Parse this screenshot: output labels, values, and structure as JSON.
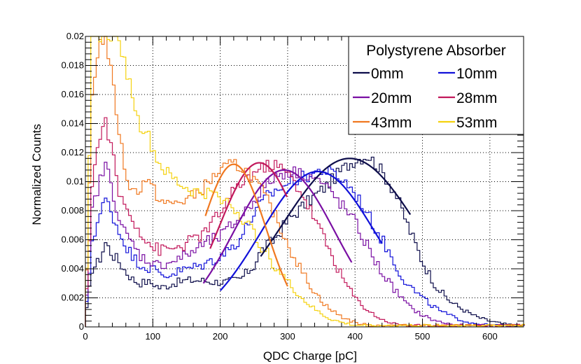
{
  "chart_data": {
    "type": "line",
    "xlabel": "QDC Charge [pC]",
    "ylabel": "Normalized Counts",
    "xlim": [
      0,
      650
    ],
    "ylim": [
      0,
      0.02
    ],
    "x_ticks": [
      0,
      100,
      200,
      300,
      400,
      500,
      600
    ],
    "y_ticks": [
      0,
      0.002,
      0.004,
      0.006,
      0.008,
      0.01,
      0.012,
      0.014,
      0.016,
      0.018,
      0.02
    ],
    "x_tick_labels": [
      "0",
      "100",
      "200",
      "300",
      "400",
      "500",
      "600"
    ],
    "y_tick_labels": [
      "0",
      "0.002",
      "0.004",
      "0.006",
      "0.008",
      "0.01",
      "0.012",
      "0.014",
      "0.016",
      "0.018",
      "0.02"
    ],
    "grid": true,
    "legend": {
      "title": "Polystyrene Absorber",
      "placement": "top-right"
    },
    "series": [
      {
        "name": "0mm",
        "color": "#0d0d4a",
        "points": [
          [
            0,
            0.0005
          ],
          [
            10,
            0.004
          ],
          [
            20,
            0.0045
          ],
          [
            30,
            0.0058
          ],
          [
            40,
            0.005
          ],
          [
            50,
            0.0045
          ],
          [
            60,
            0.0038
          ],
          [
            70,
            0.0033
          ],
          [
            80,
            0.003
          ],
          [
            90,
            0.0031
          ],
          [
            100,
            0.003
          ],
          [
            110,
            0.0027
          ],
          [
            120,
            0.0028
          ],
          [
            130,
            0.003
          ],
          [
            140,
            0.0031
          ],
          [
            150,
            0.0032
          ],
          [
            170,
            0.0032
          ],
          [
            190,
            0.0031
          ],
          [
            210,
            0.0031
          ],
          [
            230,
            0.0033
          ],
          [
            250,
            0.0042
          ],
          [
            260,
            0.0052
          ],
          [
            280,
            0.006
          ],
          [
            300,
            0.0073
          ],
          [
            320,
            0.0082
          ],
          [
            340,
            0.009
          ],
          [
            360,
            0.0098
          ],
          [
            380,
            0.0108
          ],
          [
            400,
            0.0115
          ],
          [
            420,
            0.0118
          ],
          [
            440,
            0.0107
          ],
          [
            460,
            0.0092
          ],
          [
            480,
            0.0068
          ],
          [
            500,
            0.0045
          ],
          [
            520,
            0.0028
          ],
          [
            540,
            0.0018
          ],
          [
            560,
            0.0012
          ],
          [
            580,
            0.0007
          ],
          [
            600,
            0.0004
          ],
          [
            620,
            0.0002
          ],
          [
            640,
            0.0001
          ]
        ],
        "fit": {
          "peak": 0.0116,
          "mean": 392,
          "sigma": 100,
          "range": [
            260,
            482
          ]
        }
      },
      {
        "name": "10mm",
        "color": "#1111d9",
        "points": [
          [
            0,
            0.0005
          ],
          [
            10,
            0.006
          ],
          [
            20,
            0.0075
          ],
          [
            30,
            0.0088
          ],
          [
            40,
            0.0078
          ],
          [
            50,
            0.0065
          ],
          [
            60,
            0.0057
          ],
          [
            70,
            0.0048
          ],
          [
            80,
            0.0044
          ],
          [
            90,
            0.0041
          ],
          [
            100,
            0.004
          ],
          [
            110,
            0.0037
          ],
          [
            120,
            0.0035
          ],
          [
            130,
            0.0037
          ],
          [
            150,
            0.004
          ],
          [
            170,
            0.0042
          ],
          [
            190,
            0.0046
          ],
          [
            210,
            0.0052
          ],
          [
            230,
            0.0061
          ],
          [
            250,
            0.0078
          ],
          [
            270,
            0.009
          ],
          [
            290,
            0.0096
          ],
          [
            310,
            0.0101
          ],
          [
            330,
            0.0104
          ],
          [
            350,
            0.0108
          ],
          [
            370,
            0.0105
          ],
          [
            390,
            0.0098
          ],
          [
            410,
            0.0085
          ],
          [
            430,
            0.0068
          ],
          [
            450,
            0.0052
          ],
          [
            470,
            0.0034
          ],
          [
            490,
            0.0024
          ],
          [
            510,
            0.0016
          ],
          [
            530,
            0.001
          ],
          [
            550,
            0.0006
          ],
          [
            570,
            0.0003
          ],
          [
            600,
            0.0001
          ]
        ],
        "fit": {
          "peak": 0.0107,
          "mean": 345,
          "sigma": 85,
          "range": [
            200,
            440
          ]
        }
      },
      {
        "name": "20mm",
        "color": "#7a0fa3",
        "points": [
          [
            0,
            0.0005
          ],
          [
            10,
            0.008
          ],
          [
            20,
            0.0098
          ],
          [
            30,
            0.0112
          ],
          [
            40,
            0.0095
          ],
          [
            50,
            0.0075
          ],
          [
            60,
            0.0063
          ],
          [
            70,
            0.0057
          ],
          [
            80,
            0.005
          ],
          [
            90,
            0.0046
          ],
          [
            100,
            0.0045
          ],
          [
            110,
            0.0042
          ],
          [
            120,
            0.0044
          ],
          [
            140,
            0.0047
          ],
          [
            160,
            0.0052
          ],
          [
            180,
            0.0058
          ],
          [
            200,
            0.0062
          ],
          [
            220,
            0.0071
          ],
          [
            240,
            0.0081
          ],
          [
            260,
            0.0093
          ],
          [
            280,
            0.0103
          ],
          [
            300,
            0.0107
          ],
          [
            320,
            0.0106
          ],
          [
            340,
            0.0103
          ],
          [
            360,
            0.0095
          ],
          [
            380,
            0.0084
          ],
          [
            400,
            0.0072
          ],
          [
            420,
            0.0054
          ],
          [
            440,
            0.0037
          ],
          [
            460,
            0.0025
          ],
          [
            480,
            0.0014
          ],
          [
            500,
            0.0008
          ],
          [
            520,
            0.0004
          ],
          [
            540,
            0.0002
          ],
          [
            560,
            0.0001
          ]
        ],
        "fit": {
          "peak": 0.0108,
          "mean": 295,
          "sigma": 75,
          "range": [
            175,
            395
          ]
        }
      },
      {
        "name": "28mm",
        "color": "#c2185b",
        "points": [
          [
            0,
            0.0005
          ],
          [
            10,
            0.01
          ],
          [
            20,
            0.0128
          ],
          [
            30,
            0.0142
          ],
          [
            40,
            0.012
          ],
          [
            50,
            0.0092
          ],
          [
            60,
            0.0082
          ],
          [
            70,
            0.0075
          ],
          [
            80,
            0.0067
          ],
          [
            90,
            0.006
          ],
          [
            100,
            0.0055
          ],
          [
            110,
            0.0053
          ],
          [
            120,
            0.0053
          ],
          [
            140,
            0.0055
          ],
          [
            160,
            0.006
          ],
          [
            180,
            0.0066
          ],
          [
            200,
            0.0079
          ],
          [
            220,
            0.0093
          ],
          [
            240,
            0.0103
          ],
          [
            260,
            0.0109
          ],
          [
            280,
            0.0112
          ],
          [
            300,
            0.0106
          ],
          [
            320,
            0.0093
          ],
          [
            340,
            0.0075
          ],
          [
            360,
            0.0055
          ],
          [
            380,
            0.0035
          ],
          [
            400,
            0.002
          ],
          [
            420,
            0.0011
          ],
          [
            440,
            0.0005
          ],
          [
            460,
            0.0002
          ],
          [
            480,
            0.0001
          ]
        ],
        "fit": {
          "peak": 0.0113,
          "mean": 258,
          "sigma": 60,
          "range": [
            185,
            300
          ]
        }
      },
      {
        "name": "43mm",
        "color": "#f07820",
        "points": [
          [
            0,
            0.0005
          ],
          [
            10,
            0.016
          ],
          [
            20,
            0.0195
          ],
          [
            30,
            0.02
          ],
          [
            40,
            0.017
          ],
          [
            50,
            0.0135
          ],
          [
            60,
            0.0105
          ],
          [
            70,
            0.0093
          ],
          [
            80,
            0.0095
          ],
          [
            90,
            0.0102
          ],
          [
            100,
            0.0095
          ],
          [
            110,
            0.0088
          ],
          [
            120,
            0.0084
          ],
          [
            140,
            0.0086
          ],
          [
            160,
            0.009
          ],
          [
            180,
            0.0098
          ],
          [
            200,
            0.0108
          ],
          [
            220,
            0.0112
          ],
          [
            240,
            0.0108
          ],
          [
            260,
            0.0095
          ],
          [
            280,
            0.0078
          ],
          [
            300,
            0.0058
          ],
          [
            320,
            0.0039
          ],
          [
            340,
            0.0024
          ],
          [
            360,
            0.0013
          ],
          [
            380,
            0.0007
          ],
          [
            400,
            0.0003
          ],
          [
            420,
            0.0001
          ]
        ],
        "fit": {
          "peak": 0.0112,
          "mean": 220,
          "sigma": 48,
          "range": [
            178,
            300
          ]
        }
      },
      {
        "name": "53mm",
        "color": "#f5d20f",
        "points": [
          [
            0,
            0.0005
          ],
          [
            10,
            0.02
          ],
          [
            20,
            0.02
          ],
          [
            30,
            0.02
          ],
          [
            40,
            0.02
          ],
          [
            50,
            0.02
          ],
          [
            55,
            0.0188
          ],
          [
            60,
            0.0178
          ],
          [
            70,
            0.016
          ],
          [
            80,
            0.0138
          ],
          [
            90,
            0.0136
          ],
          [
            100,
            0.0122
          ],
          [
            110,
            0.0112
          ],
          [
            120,
            0.0106
          ],
          [
            140,
            0.0098
          ],
          [
            160,
            0.0093
          ],
          [
            180,
            0.0092
          ],
          [
            200,
            0.009
          ],
          [
            220,
            0.0082
          ],
          [
            240,
            0.0071
          ],
          [
            260,
            0.0057
          ],
          [
            280,
            0.0043
          ],
          [
            300,
            0.0031
          ],
          [
            320,
            0.002
          ],
          [
            340,
            0.0012
          ],
          [
            360,
            0.0006
          ],
          [
            380,
            0.0003
          ],
          [
            400,
            0.0001
          ]
        ],
        "fit": null
      }
    ]
  }
}
